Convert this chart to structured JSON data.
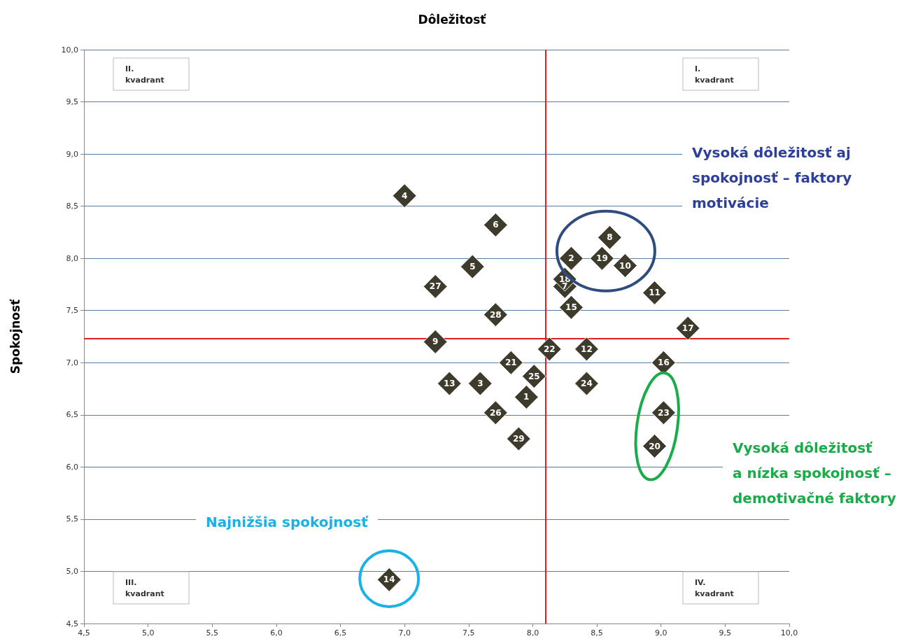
{
  "chart_data": {
    "type": "scatter",
    "xlabel": "Dôležitosť",
    "ylabel": "Spokojnosť",
    "x": [
      7.95,
      8.3,
      7.59,
      7.0,
      7.53,
      7.71,
      8.25,
      8.6,
      7.24,
      8.72,
      8.95,
      8.42,
      7.35,
      6.88,
      8.3,
      9.02,
      9.21,
      8.25,
      8.54,
      8.95,
      7.83,
      8.13,
      9.02,
      8.42,
      8.01,
      7.71,
      7.24,
      7.71,
      7.89
    ],
    "values": [
      6.67,
      8.0,
      6.8,
      8.6,
      7.92,
      8.32,
      7.73,
      8.2,
      7.2,
      7.93,
      7.67,
      7.13,
      6.8,
      4.92,
      7.53,
      7.0,
      7.33,
      7.8,
      8.0,
      6.2,
      7.0,
      7.13,
      6.52,
      6.8,
      6.87,
      6.52,
      7.73,
      7.46,
      6.27
    ],
    "color": "#3f3b2c",
    "marker": "diamond",
    "xlim": [
      4.5,
      10.0
    ],
    "xticks": [
      {
        "value": 4.5,
        "label": "4,5"
      },
      {
        "value": 5.0,
        "label": "5,0"
      },
      {
        "value": 5.5,
        "label": "5,5"
      },
      {
        "value": 6.0,
        "label": "6,0"
      },
      {
        "value": 6.5,
        "label": "6,5"
      },
      {
        "value": 7.0,
        "label": "7,0"
      },
      {
        "value": 7.5,
        "label": "7,5"
      },
      {
        "value": 8.0,
        "label": "8,0"
      },
      {
        "value": 8.5,
        "label": "8,5"
      },
      {
        "value": 9.0,
        "label": "9,0"
      },
      {
        "value": 9.5,
        "label": "9,5"
      },
      {
        "value": 10.0,
        "label": "10,0"
      }
    ],
    "ylim": [
      4.5,
      10.0
    ],
    "yticks": [
      {
        "value": 4.5,
        "label": "4,5"
      },
      {
        "value": 5.0,
        "label": "5,0"
      },
      {
        "value": 5.5,
        "label": "5,5"
      },
      {
        "value": 6.0,
        "label": "6,0"
      },
      {
        "value": 6.5,
        "label": "6,5"
      },
      {
        "value": 7.0,
        "label": "7,0"
      },
      {
        "value": 7.5,
        "label": "7,5"
      },
      {
        "value": 8.0,
        "label": "8,0"
      },
      {
        "value": 8.5,
        "label": "8,5"
      },
      {
        "value": 9.0,
        "label": "9,0"
      },
      {
        "value": 9.5,
        "label": "9,5"
      },
      {
        "value": 10.0,
        "label": "10,0"
      }
    ],
    "grid": "y",
    "ref_lines": [
      {
        "axis": "x",
        "value": 8.1,
        "color": "#e02020"
      },
      {
        "axis": "y",
        "value": 7.23,
        "color": "#e02020"
      }
    ],
    "annotations": [
      "II.\nkvadrant",
      "I.\nkvadrant",
      "III.\nkvadrant",
      "IV.\nkvadrant",
      "Vysoká dôležitosť aj\nspokojnosť – faktory\nmotivácie",
      "Vysoká dôležitosť\na nízka spokojnosť –\ndemotivačné faktory",
      "Najnižšia spokojnosť",
      {
        "text": "1",
        "x": 7.95,
        "y": 6.67
      },
      {
        "text": "2",
        "x": 8.3,
        "y": 8.0
      },
      {
        "text": "3",
        "x": 7.59,
        "y": 6.8
      },
      {
        "text": "4",
        "x": 7.0,
        "y": 8.6
      },
      {
        "text": "5",
        "x": 7.53,
        "y": 7.92
      },
      {
        "text": "6",
        "x": 7.71,
        "y": 8.32
      },
      {
        "text": "7",
        "x": 8.25,
        "y": 7.73
      },
      {
        "text": "8",
        "x": 8.6,
        "y": 8.2
      },
      {
        "text": "9",
        "x": 7.24,
        "y": 7.2
      },
      {
        "text": "10",
        "x": 8.72,
        "y": 7.93
      },
      {
        "text": "11",
        "x": 8.95,
        "y": 7.67
      },
      {
        "text": "12",
        "x": 8.42,
        "y": 7.13
      },
      {
        "text": "13",
        "x": 7.35,
        "y": 6.8
      },
      {
        "text": "14",
        "x": 6.88,
        "y": 4.92
      },
      {
        "text": "15",
        "x": 8.3,
        "y": 7.53
      },
      {
        "text": "16",
        "x": 9.02,
        "y": 7.0
      },
      {
        "text": "17",
        "x": 9.21,
        "y": 7.33
      },
      {
        "text": "18",
        "x": 8.25,
        "y": 7.8
      },
      {
        "text": "19",
        "x": 8.54,
        "y": 8.0
      },
      {
        "text": "20",
        "x": 8.95,
        "y": 6.2
      },
      {
        "text": "21",
        "x": 7.83,
        "y": 7.0
      },
      {
        "text": "22",
        "x": 8.13,
        "y": 7.13
      },
      {
        "text": "23",
        "x": 9.02,
        "y": 6.52
      },
      {
        "text": "24",
        "x": 8.42,
        "y": 6.8
      },
      {
        "text": "25",
        "x": 8.01,
        "y": 6.87
      },
      {
        "text": "26",
        "x": 7.71,
        "y": 6.52
      },
      {
        "text": "27",
        "x": 7.24,
        "y": 7.73
      },
      {
        "text": "28",
        "x": 7.71,
        "y": 7.46
      },
      {
        "text": "29",
        "x": 7.89,
        "y": 6.27
      }
    ]
  }
}
